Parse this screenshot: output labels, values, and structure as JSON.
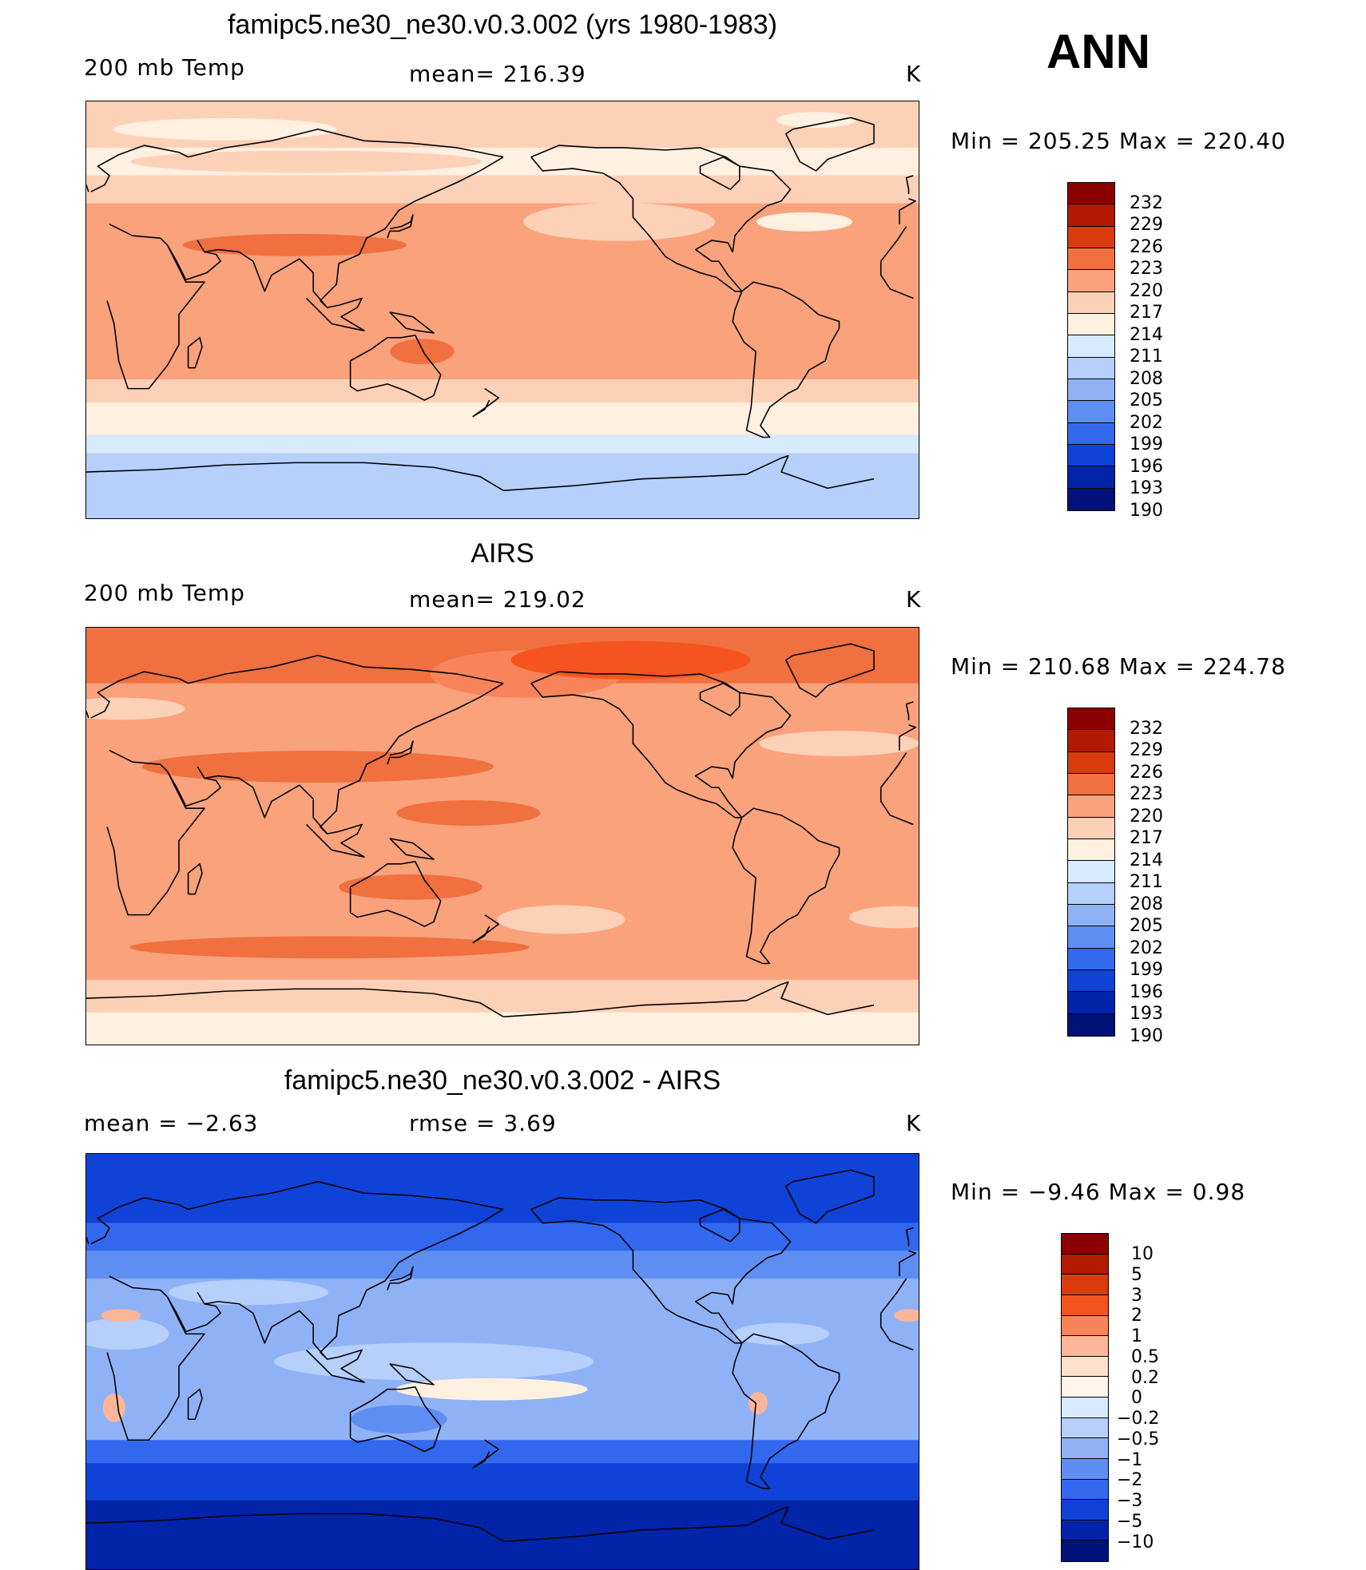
{
  "header": {
    "season": "ANN"
  },
  "panels": [
    {
      "title": "famipc5.ne30_ne30.v0.3.002 (yrs 1980-1983)",
      "left_label": "200 mb Temp",
      "center_label": "mean= 216.39",
      "units": "K",
      "minmax": "Min  =  205.25  Max  =  220.40",
      "colorbar": {
        "colors": [
          "#8b0000",
          "#b21a00",
          "#d93b0c",
          "#f07040",
          "#f9a27c",
          "#fdd0b8",
          "#fff0e0",
          "#d8eafd",
          "#b6cffb",
          "#8fb2f7",
          "#5f8ef3",
          "#3168ee",
          "#0f43d8",
          "#0224a8",
          "#001178"
        ],
        "ticks": [
          "232",
          "229",
          "226",
          "223",
          "220",
          "217",
          "214",
          "211",
          "208",
          "205",
          "202",
          "199",
          "196",
          "193",
          "190"
        ]
      },
      "field": "model"
    },
    {
      "title": "AIRS",
      "left_label": "200 mb Temp",
      "center_label": "mean= 219.02",
      "units": "K",
      "minmax": "Min  =  210.68  Max  =  224.78",
      "colorbar": {
        "colors": [
          "#8b0000",
          "#b21a00",
          "#d93b0c",
          "#f07040",
          "#f9a27c",
          "#fdd0b8",
          "#fff0e0",
          "#d8eafd",
          "#b6cffb",
          "#8fb2f7",
          "#5f8ef3",
          "#3168ee",
          "#0f43d8",
          "#0224a8",
          "#001178"
        ],
        "ticks": [
          "232",
          "229",
          "226",
          "223",
          "220",
          "217",
          "214",
          "211",
          "208",
          "205",
          "202",
          "199",
          "196",
          "193",
          "190"
        ]
      },
      "field": "obs"
    },
    {
      "title": "famipc5.ne30_ne30.v0.3.002 - AIRS",
      "left_label": "mean =    −2.63",
      "center_label": "rmse =     3.69",
      "units": "K",
      "minmax": "Min  =    −9.46  Max  =     0.98",
      "colorbar": {
        "colors": [
          "#8b0000",
          "#b21a00",
          "#d93b0c",
          "#f5541e",
          "#f9845a",
          "#fdb598",
          "#ffe0cc",
          "#fff4ea",
          "#d8eafd",
          "#b6cffb",
          "#8fb2f7",
          "#5f8ef3",
          "#3168ee",
          "#0f43d8",
          "#0224a8",
          "#001178"
        ],
        "ticks": [
          "10",
          "5",
          "3",
          "2",
          "1",
          "0.5",
          "0.2",
          "0",
          "−0.2",
          "−0.5",
          "−1",
          "−2",
          "−3",
          "−5",
          "−10"
        ]
      },
      "field": "diff"
    }
  ]
}
